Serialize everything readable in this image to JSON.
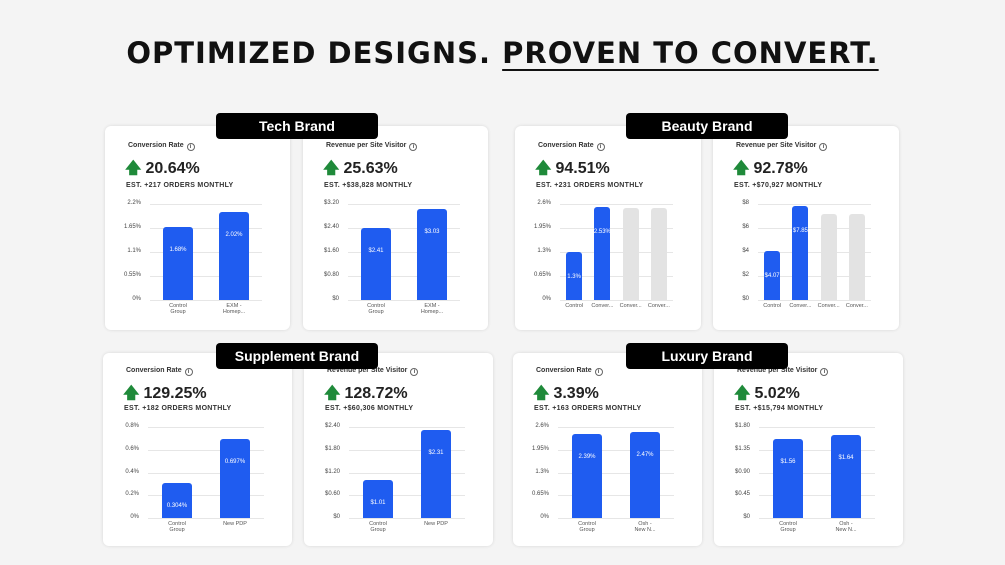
{
  "headline": {
    "part1": "OPTIMIZED DESIGNS.",
    "part2": "PROVEN TO CONVERT."
  },
  "colors": {
    "bar": "#1f5cf0",
    "bar_inactive": "#e3e3e3",
    "arrow": "#1f8a3a"
  },
  "brands": [
    {
      "name": "Tech Brand",
      "cards": [
        {
          "label": "Conversion Rate",
          "value": "20.64%",
          "est": "EST. +217 ORDERS MONTHLY",
          "yticks": [
            "0%",
            "0.55%",
            "1.1%",
            "1.65%",
            "2.2%"
          ],
          "ymax": 2.2,
          "bars": [
            {
              "x": [
                "Control",
                "Group"
              ],
              "v": 1.68,
              "text": "1.68%"
            },
            {
              "x": [
                "EXM -",
                "Homep..."
              ],
              "v": 2.02,
              "text": "2.02%"
            }
          ]
        },
        {
          "label": "Revenue per Site Visitor",
          "value": "25.63%",
          "est": "EST. +$38,828 MONTHLY",
          "yticks": [
            "$0",
            "$0.80",
            "$1.60",
            "$2.40",
            "$3.20"
          ],
          "ymax": 3.2,
          "bars": [
            {
              "x": [
                "Control",
                "Group"
              ],
              "v": 2.41,
              "text": "$2.41"
            },
            {
              "x": [
                "EXM -",
                "Homep..."
              ],
              "v": 3.03,
              "text": "$3.03"
            }
          ]
        }
      ]
    },
    {
      "name": "Beauty Brand",
      "cards": [
        {
          "label": "Conversion Rate",
          "value": "94.51%",
          "est": "EST. +231 ORDERS MONTHLY",
          "yticks": [
            "0%",
            "0.65%",
            "1.3%",
            "1.95%",
            "2.6%"
          ],
          "ymax": 2.6,
          "bars": [
            {
              "x": [
                "Control"
              ],
              "v": 1.3,
              "text": "1.3%"
            },
            {
              "x": [
                "Conver..."
              ],
              "v": 2.53,
              "text": "2.53%"
            },
            {
              "x": [
                "Conver..."
              ],
              "v": 2.5,
              "inactive": true
            },
            {
              "x": [
                "Conver..."
              ],
              "v": 2.5,
              "inactive": true
            }
          ]
        },
        {
          "label": "Revenue per Site Visitor",
          "value": "92.78%",
          "est": "EST. +$70,927 MONTHLY",
          "yticks": [
            "$0",
            "$2",
            "$4",
            "$6",
            "$8"
          ],
          "ymax": 8,
          "bars": [
            {
              "x": [
                "Control"
              ],
              "v": 4.07,
              "text": "$4.07"
            },
            {
              "x": [
                "Conver..."
              ],
              "v": 7.85,
              "text": "$7.85"
            },
            {
              "x": [
                "Conver..."
              ],
              "v": 7.2,
              "inactive": true
            },
            {
              "x": [
                "Conver..."
              ],
              "v": 7.2,
              "inactive": true
            }
          ]
        }
      ]
    },
    {
      "name": "Supplement Brand",
      "cards": [
        {
          "label": "Conversion Rate",
          "value": "129.25%",
          "est": "EST. +182 ORDERS MONTHLY",
          "yticks": [
            "0%",
            "0.2%",
            "0.4%",
            "0.6%",
            "0.8%"
          ],
          "ymax": 0.8,
          "bars": [
            {
              "x": [
                "Control",
                "Group"
              ],
              "v": 0.304,
              "text": "0.304%"
            },
            {
              "x": [
                "New PDP"
              ],
              "v": 0.697,
              "text": "0.697%"
            }
          ]
        },
        {
          "label": "Revenue per Site Visitor",
          "value": "128.72%",
          "est": "EST. +$60,306 MONTHLY",
          "yticks": [
            "$0",
            "$0.60",
            "$1.20",
            "$1.80",
            "$2.40"
          ],
          "ymax": 2.4,
          "bars": [
            {
              "x": [
                "Control",
                "Group"
              ],
              "v": 1.01,
              "text": "$1.01"
            },
            {
              "x": [
                "New PDP"
              ],
              "v": 2.31,
              "text": "$2.31"
            }
          ]
        }
      ]
    },
    {
      "name": "Luxury Brand",
      "cards": [
        {
          "label": "Conversion Rate",
          "value": "3.39%",
          "est": "EST. +163 ORDERS MONTHLY",
          "yticks": [
            "0%",
            "0.65%",
            "1.3%",
            "1.95%",
            "2.6%"
          ],
          "ymax": 2.6,
          "bars": [
            {
              "x": [
                "Control",
                "Group"
              ],
              "v": 2.39,
              "text": "2.39%"
            },
            {
              "x": [
                "Osh -",
                "New N..."
              ],
              "v": 2.47,
              "text": "2.47%"
            }
          ]
        },
        {
          "label": "Revenue per Site Visitor",
          "value": "5.02%",
          "est": "EST. +$15,794 MONTHLY",
          "yticks": [
            "$0",
            "$0.45",
            "$0.90",
            "$1.35",
            "$1.80"
          ],
          "ymax": 1.8,
          "bars": [
            {
              "x": [
                "Control",
                "Group"
              ],
              "v": 1.56,
              "text": "$1.56"
            },
            {
              "x": [
                "Osh -",
                "New N..."
              ],
              "v": 1.64,
              "text": "$1.64"
            }
          ]
        }
      ]
    }
  ]
}
